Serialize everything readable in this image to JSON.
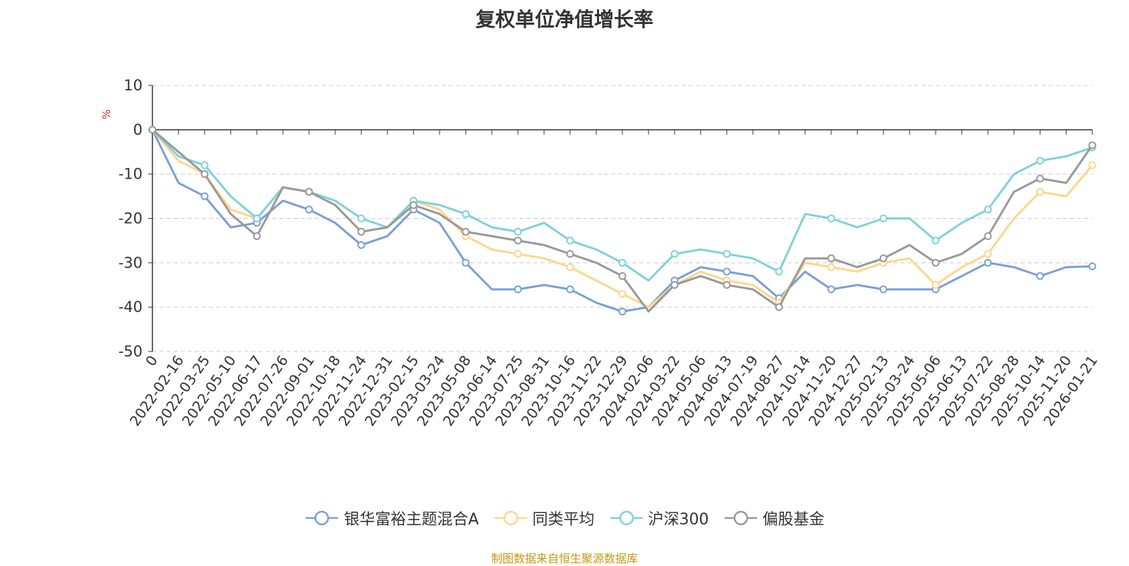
{
  "chart_data": {
    "type": "line",
    "title": "复权单位净值增长率",
    "ylabel": "%",
    "xlabel": "",
    "ylim": [
      -50,
      10
    ],
    "yticks": [
      "10",
      "0",
      "-10",
      "-20",
      "-30",
      "-40",
      "-50"
    ],
    "grid": true,
    "legend_position": "bottom",
    "categories": [
      "0",
      "2022-02-16",
      "2022-03-25",
      "2022-05-10",
      "2022-06-17",
      "2022-07-26",
      "2022-09-01",
      "2022-10-18",
      "2022-11-24",
      "2022-12-31",
      "2023-02-15",
      "2023-03-24",
      "2023-05-08",
      "2023-06-14",
      "2023-07-25",
      "2023-08-31",
      "2023-10-16",
      "2023-11-22",
      "2023-12-29",
      "2024-02-06",
      "2024-03-22",
      "2024-05-06",
      "2024-06-13",
      "2024-07-19",
      "2024-08-27",
      "2024-10-14",
      "2024-11-20",
      "2024-12-27",
      "2025-02-13",
      "2025-03-24",
      "2025-05-06",
      "2025-06-13",
      "2025-07-22",
      "2025-08-28",
      "2025-10-14",
      "2025-11-20",
      "2026-01-21"
    ],
    "series": [
      {
        "name": "银华富裕主题混合A",
        "color": "#7b9fd6",
        "values": [
          0,
          -12,
          -15,
          -22,
          -21,
          -16,
          -18,
          -21,
          -26,
          -24,
          -18,
          -21,
          -30,
          -36,
          -36,
          -35,
          -36,
          -39,
          -41,
          -40,
          -34,
          -31,
          -32,
          -33,
          -38,
          -32,
          -36,
          -35,
          -36,
          -36,
          -36,
          -33,
          -30,
          -31,
          -33,
          -31,
          -30.8
        ]
      },
      {
        "name": "同类平均",
        "color": "#fdd68a",
        "values": [
          0,
          -7,
          -10,
          -18,
          -20,
          -13,
          -14,
          -17,
          -23,
          -22,
          -16,
          -18,
          -24,
          -27,
          -28,
          -29,
          -31,
          -34,
          -37,
          -40,
          -35,
          -32,
          -34,
          -35,
          -39,
          -30,
          -31,
          -32,
          -30,
          -29,
          -35,
          -31,
          -28,
          -20,
          -14,
          -15,
          -8
        ]
      },
      {
        "name": "沪深300",
        "color": "#7fd1dc",
        "values": [
          0,
          -6,
          -8,
          -15,
          -20,
          -13,
          -14,
          -16,
          -20,
          -22,
          -16,
          -17,
          -19,
          -22,
          -23,
          -21,
          -25,
          -27,
          -30,
          -34,
          -28,
          -27,
          -28,
          -29,
          -32,
          -19,
          -20,
          -22,
          -20,
          -20,
          -25,
          -21,
          -18,
          -10,
          -7,
          -6,
          -4
        ]
      },
      {
        "name": "偏股基金",
        "color": "#999999",
        "values": [
          0,
          -5,
          -10,
          -19,
          -24,
          -13,
          -14,
          -17,
          -23,
          -22,
          -17,
          -19,
          -23,
          -24,
          -25,
          -26,
          -28,
          -30,
          -33,
          -41,
          -35,
          -33,
          -35,
          -36,
          -40,
          -29,
          -29,
          -31,
          -29,
          -26,
          -30,
          -28,
          -24,
          -14,
          -11,
          -12,
          -3.5
        ]
      }
    ]
  },
  "footer": {
    "source": "制图数据来自恒生聚源数据库"
  }
}
